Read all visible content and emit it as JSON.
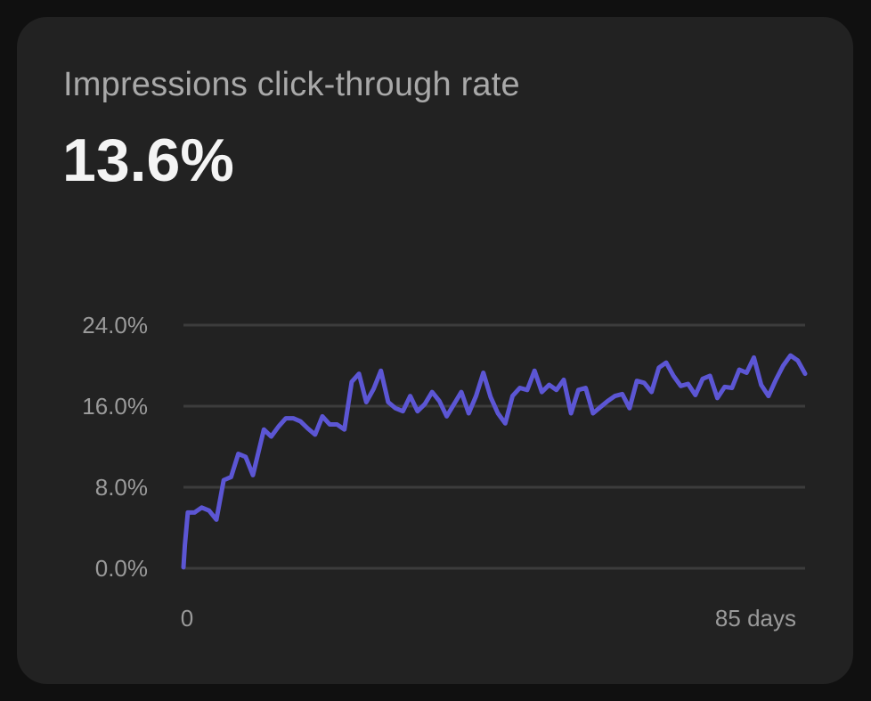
{
  "card": {
    "title": "Impressions click-through rate",
    "value": "13.6%"
  },
  "colors": {
    "background": "#101010",
    "card": "#222222",
    "line": "#5c56d4",
    "grid": "#3c3c3c",
    "title": "#a9a9a9",
    "value": "#f4f4f4",
    "tick": "#9a9a9a"
  },
  "chart_data": {
    "type": "line",
    "ylim": [
      0,
      24
    ],
    "xlim": [
      0,
      85
    ],
    "y_ticks": [
      {
        "value": 24,
        "label": "24.0%"
      },
      {
        "value": 16,
        "label": "16.0%"
      },
      {
        "value": 8,
        "label": "8.0%"
      },
      {
        "value": 0,
        "label": "0.0%"
      }
    ],
    "x_ticks": [
      {
        "value": 0,
        "label": "0"
      },
      {
        "value": 85,
        "label": "85 days"
      }
    ],
    "grid": true,
    "series": [
      {
        "x": [
          0,
          0.2,
          0.6,
          1.5,
          2.5,
          3.5,
          4.5,
          5.5,
          6.5,
          7.5,
          8.5,
          9.5,
          11,
          12,
          13,
          14,
          15,
          16,
          17,
          18,
          19,
          20,
          21,
          22,
          23,
          24,
          25,
          26,
          27,
          28,
          29,
          30,
          31,
          32,
          33,
          34,
          35,
          36,
          37,
          38,
          39,
          40,
          41,
          42,
          43,
          44,
          45,
          46,
          47,
          48,
          49,
          50,
          51,
          52,
          53,
          54,
          55,
          56,
          57,
          58,
          59,
          60,
          61,
          62,
          63,
          64,
          65,
          66,
          67,
          68,
          69,
          70,
          71,
          72,
          73,
          74,
          75,
          76,
          77,
          78,
          79,
          80,
          81,
          82,
          83,
          84,
          85
        ],
        "y": [
          0.1,
          2.3,
          5.5,
          5.5,
          6.0,
          5.7,
          4.8,
          8.7,
          9.0,
          11.3,
          11.0,
          9.2,
          13.7,
          13.0,
          14.0,
          14.8,
          14.8,
          14.5,
          13.8,
          13.2,
          15.0,
          14.2,
          14.2,
          13.7,
          18.4,
          19.2,
          16.4,
          17.7,
          19.5,
          16.4,
          15.8,
          15.5,
          17.0,
          15.5,
          16.2,
          17.4,
          16.5,
          15.0,
          16.2,
          17.4,
          15.3,
          17.0,
          19.3,
          16.9,
          15.3,
          14.3,
          17.0,
          17.8,
          17.6,
          19.5,
          17.4,
          18.1,
          17.6,
          18.6,
          15.3,
          17.6,
          17.8,
          15.3,
          15.9,
          16.5,
          17.0,
          17.2,
          15.8,
          18.5,
          18.3,
          17.4,
          19.8,
          20.3,
          19.0,
          18.0,
          18.2,
          17.1,
          18.7,
          19.0,
          16.8,
          17.9,
          17.8,
          19.6,
          19.3,
          20.8,
          18.1,
          17.0,
          18.6,
          20.0,
          21.0,
          20.5,
          19.2
        ]
      }
    ]
  }
}
